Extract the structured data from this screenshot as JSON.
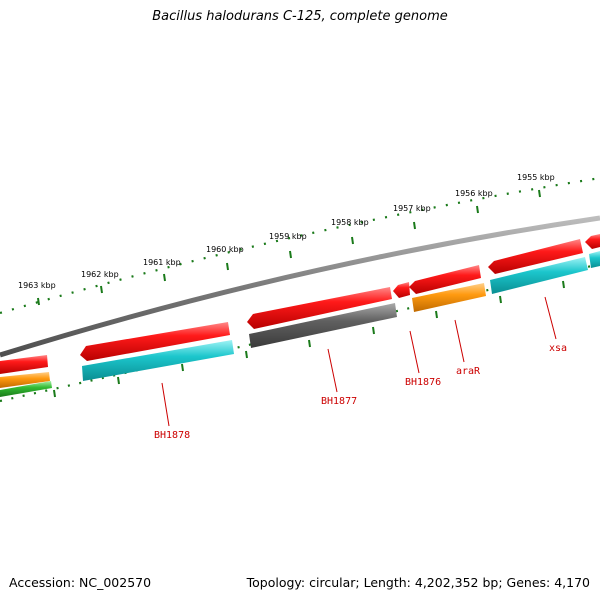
{
  "title": "Bacillus halodurans C-125, complete genome",
  "footer": {
    "accession": "Accession: NC_002570",
    "topology": "Topology: circular; Length: 4,202,352 bp; Genes: 4,170"
  },
  "colors": {
    "backbone": "#808080",
    "tick": "#1a7a1a",
    "forward_gene": "#e01010",
    "cyan_gene": "#1cc6cc",
    "gray_gene": "#555555",
    "orange_gene": "#ff8c00",
    "green_gene": "#33bb33",
    "label": "#cc0000"
  },
  "kbp_labels": [
    "1963 kbp",
    "1962 kbp",
    "1961 kbp",
    "1960 kbp",
    "1959 kbp",
    "1958 kbp",
    "1957 kbp",
    "1956 kbp",
    "1955 kbp"
  ],
  "gene_labels": [
    "BH1878",
    "BH1877",
    "BH1876",
    "araR",
    "xsa"
  ]
}
